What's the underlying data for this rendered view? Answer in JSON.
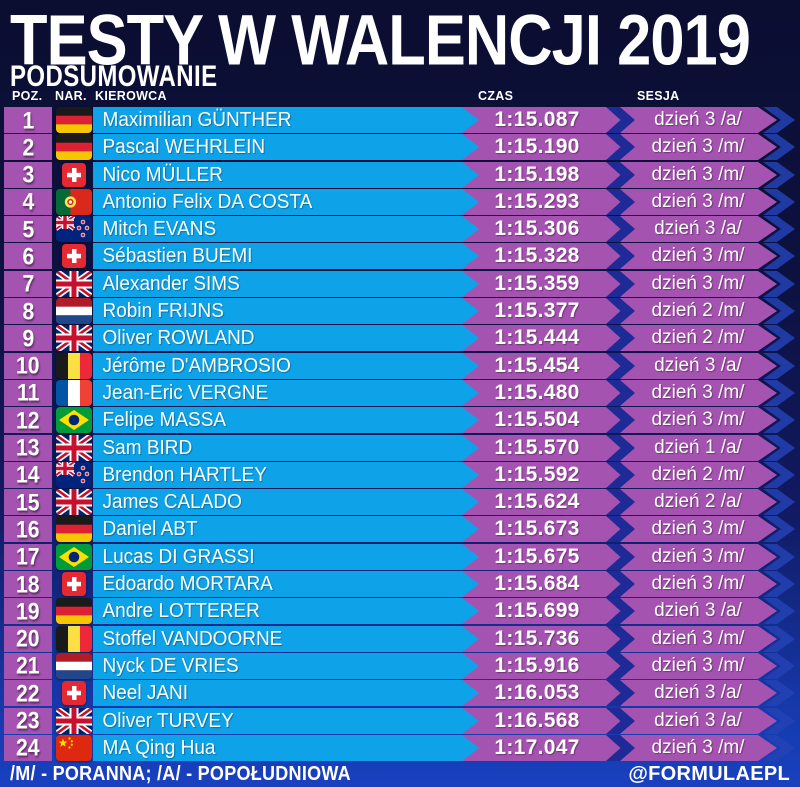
{
  "header": {
    "title": "TESTY W WALENCJI 2019",
    "subtitle": "PODSUMOWANIE"
  },
  "columns": {
    "poz": "POZ.",
    "nar": "NAR.",
    "kierowca": "KIEROWCA",
    "czas": "CZAS",
    "sesja": "SESJA"
  },
  "footer": {
    "legend": "/M/ - PORANNA; /A/ - POPOŁUDNIOWA",
    "handle": "@FORMULAEPL"
  },
  "colors": {
    "background_top": "#0b0e30",
    "background_bottom": "#1940bf",
    "name_bar_blue": "#0ea3e8",
    "time_bar_purple": "#a553b0",
    "chevron_navy": "#1e2b96",
    "text": "#ffffff"
  },
  "chart_data": {
    "type": "table",
    "title": "TESTY W WALENCJI 2019",
    "subtitle": "PODSUMOWANIE",
    "columns": [
      "POZ.",
      "NAR.",
      "KIEROWCA",
      "CZAS",
      "SESJA"
    ],
    "rows": [
      {
        "pos": "1",
        "flag": "de",
        "country": "Germany",
        "driver": "Maximilian GÜNTHER",
        "time": "1:15.087",
        "session": "dzień 3 /a/"
      },
      {
        "pos": "2",
        "flag": "de",
        "country": "Germany",
        "driver": "Pascal WEHRLEIN",
        "time": "1:15.190",
        "session": "dzień 3 /m/"
      },
      {
        "pos": "3",
        "flag": "ch",
        "country": "Switzerland",
        "driver": "Nico MÜLLER",
        "time": "1:15.198",
        "session": "dzień 3 /m/"
      },
      {
        "pos": "4",
        "flag": "pt",
        "country": "Portugal",
        "driver": "Antonio Felix DA COSTA",
        "time": "1:15.293",
        "session": "dzień 3 /m/"
      },
      {
        "pos": "5",
        "flag": "nz",
        "country": "New Zealand",
        "driver": "Mitch EVANS",
        "time": "1:15.306",
        "session": "dzień 3 /a/"
      },
      {
        "pos": "6",
        "flag": "ch",
        "country": "Switzerland",
        "driver": "Sébastien BUEMI",
        "time": "1:15.328",
        "session": "dzień 3 /m/"
      },
      {
        "pos": "7",
        "flag": "gb",
        "country": "United Kingdom",
        "driver": "Alexander SIMS",
        "time": "1:15.359",
        "session": "dzień 3 /m/"
      },
      {
        "pos": "8",
        "flag": "nl",
        "country": "Netherlands",
        "driver": "Robin FRIJNS",
        "time": "1:15.377",
        "session": "dzień 2 /m/"
      },
      {
        "pos": "9",
        "flag": "gb",
        "country": "United Kingdom",
        "driver": "Oliver ROWLAND",
        "time": "1:15.444",
        "session": "dzień 2 /m/"
      },
      {
        "pos": "10",
        "flag": "be",
        "country": "Belgium",
        "driver": "Jérôme D'AMBROSIO",
        "time": "1:15.454",
        "session": "dzień 3 /a/"
      },
      {
        "pos": "11",
        "flag": "fr",
        "country": "France",
        "driver": "Jean-Eric VERGNE",
        "time": "1:15.480",
        "session": "dzień 3 /m/"
      },
      {
        "pos": "12",
        "flag": "br",
        "country": "Brazil",
        "driver": "Felipe MASSA",
        "time": "1:15.504",
        "session": "dzień 3 /m/"
      },
      {
        "pos": "13",
        "flag": "gb",
        "country": "United Kingdom",
        "driver": "Sam BIRD",
        "time": "1:15.570",
        "session": "dzień 1 /a/"
      },
      {
        "pos": "14",
        "flag": "nz",
        "country": "New Zealand",
        "driver": "Brendon HARTLEY",
        "time": "1:15.592",
        "session": "dzień 2 /m/"
      },
      {
        "pos": "15",
        "flag": "gb",
        "country": "United Kingdom",
        "driver": "James CALADO",
        "time": "1:15.624",
        "session": "dzień 2 /a/"
      },
      {
        "pos": "16",
        "flag": "de",
        "country": "Germany",
        "driver": "Daniel ABT",
        "time": "1:15.673",
        "session": "dzień 3 /m/"
      },
      {
        "pos": "17",
        "flag": "br",
        "country": "Brazil",
        "driver": "Lucas DI GRASSI",
        "time": "1:15.675",
        "session": "dzień 3 /m/"
      },
      {
        "pos": "18",
        "flag": "ch",
        "country": "Switzerland",
        "driver": "Edoardo MORTARA",
        "time": "1:15.684",
        "session": "dzień 3 /m/"
      },
      {
        "pos": "19",
        "flag": "de",
        "country": "Germany",
        "driver": "Andre LOTTERER",
        "time": "1:15.699",
        "session": "dzień 3 /a/"
      },
      {
        "pos": "20",
        "flag": "be",
        "country": "Belgium",
        "driver": "Stoffel VANDOORNE",
        "time": "1:15.736",
        "session": "dzień 3 /m/"
      },
      {
        "pos": "21",
        "flag": "nl",
        "country": "Netherlands",
        "driver": "Nyck DE VRIES",
        "time": "1:15.916",
        "session": "dzień 3 /m/"
      },
      {
        "pos": "22",
        "flag": "ch",
        "country": "Switzerland",
        "driver": "Neel JANI",
        "time": "1:16.053",
        "session": "dzień 3 /a/"
      },
      {
        "pos": "23",
        "flag": "gb",
        "country": "United Kingdom",
        "driver": "Oliver TURVEY",
        "time": "1:16.568",
        "session": "dzień 3 /a/"
      },
      {
        "pos": "24",
        "flag": "cn",
        "country": "China",
        "driver": "MA Qing Hua",
        "time": "1:17.047",
        "session": "dzień 3 /m/"
      }
    ]
  }
}
